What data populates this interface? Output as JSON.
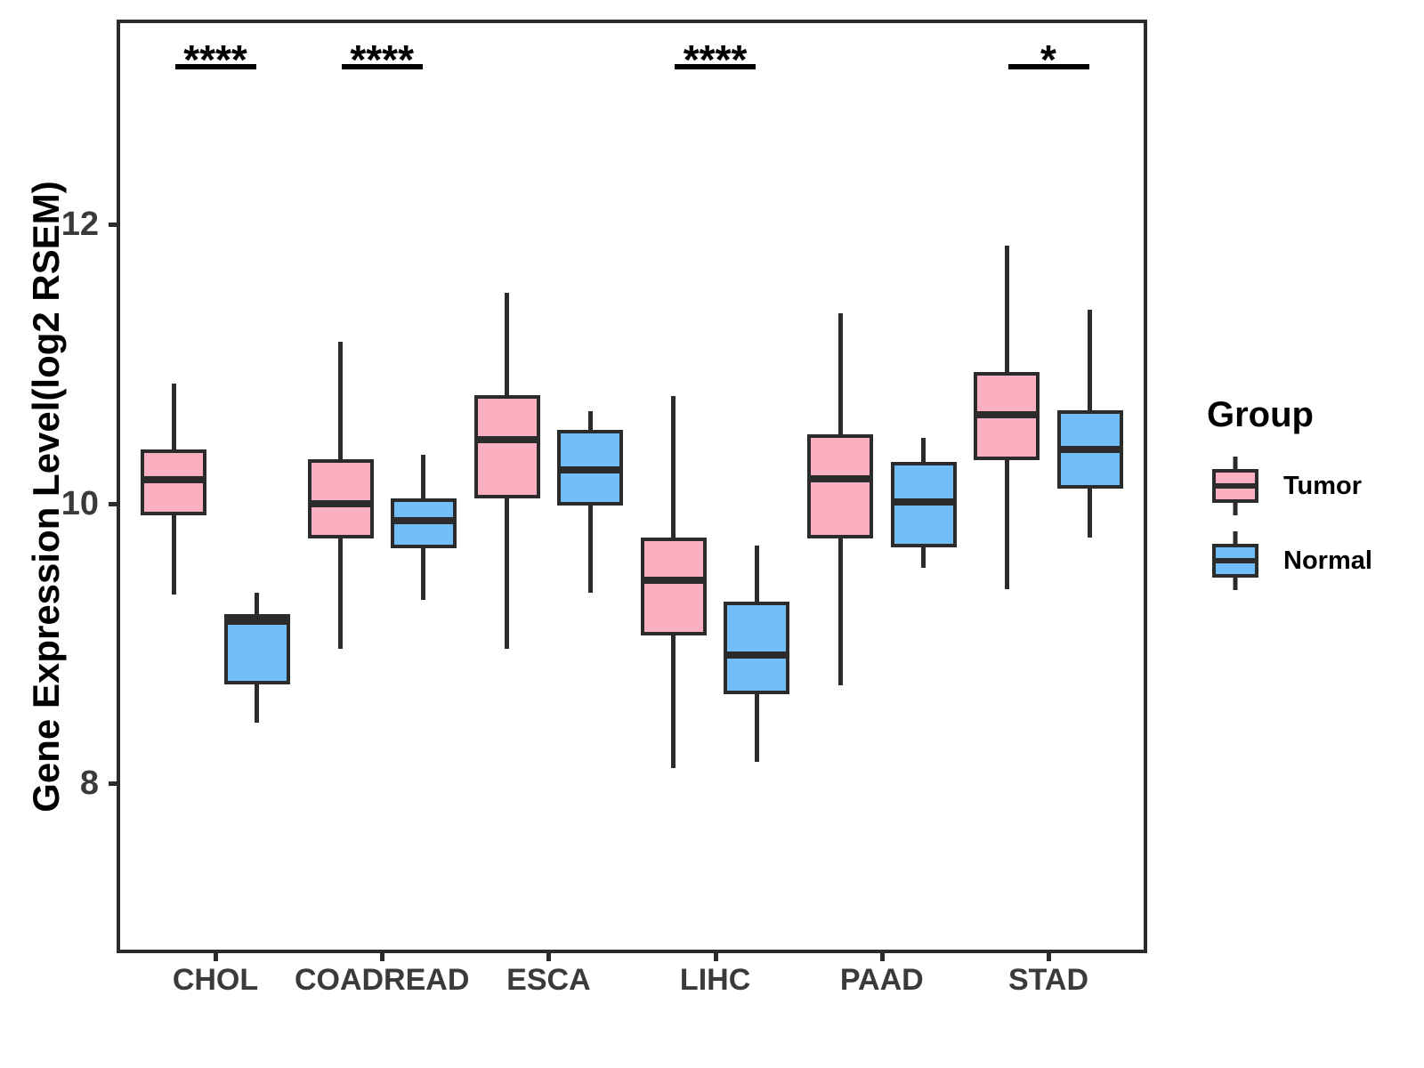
{
  "chart_data": {
    "type": "boxplot",
    "title": "",
    "xlabel": "",
    "ylabel": "Gene Expression Level(log2 RSEM)",
    "categories": [
      "CHOL",
      "COADREAD",
      "ESCA",
      "LIHC",
      "PAAD",
      "STAD"
    ],
    "yticks": [
      8,
      10,
      12
    ],
    "ylim": [
      6.8,
      13.45
    ],
    "grid": false,
    "legend": {
      "title": "Group",
      "position": "right"
    },
    "series": [
      {
        "name": "Tumor",
        "color": "#FBB0C2",
        "boxes": [
          {
            "category": "CHOL",
            "whisker_low": 9.35,
            "q1": 9.92,
            "median": 10.17,
            "q3": 10.39,
            "whisker_high": 10.86
          },
          {
            "category": "COADREAD",
            "whisker_low": 8.96,
            "q1": 9.75,
            "median": 10.0,
            "q3": 10.32,
            "whisker_high": 11.16
          },
          {
            "category": "ESCA",
            "whisker_low": 8.96,
            "q1": 10.04,
            "median": 10.46,
            "q3": 10.78,
            "whisker_high": 11.51
          },
          {
            "category": "LIHC",
            "whisker_low": 8.11,
            "q1": 9.06,
            "median": 9.45,
            "q3": 9.76,
            "whisker_high": 10.77
          },
          {
            "category": "PAAD",
            "whisker_low": 8.7,
            "q1": 9.75,
            "median": 10.18,
            "q3": 10.5,
            "whisker_high": 11.36
          },
          {
            "category": "STAD",
            "whisker_low": 9.39,
            "q1": 10.31,
            "median": 10.64,
            "q3": 10.94,
            "whisker_high": 11.85
          }
        ]
      },
      {
        "name": "Normal",
        "color": "#72BFF7",
        "boxes": [
          {
            "category": "CHOL",
            "whisker_low": 8.43,
            "q1": 8.71,
            "median": 9.16,
            "q3": 9.21,
            "whisker_high": 9.36
          },
          {
            "category": "COADREAD",
            "whisker_low": 9.31,
            "q1": 9.68,
            "median": 9.88,
            "q3": 10.04,
            "whisker_high": 10.35
          },
          {
            "category": "ESCA",
            "whisker_low": 9.36,
            "q1": 9.99,
            "median": 10.24,
            "q3": 10.53,
            "whisker_high": 10.66
          },
          {
            "category": "LIHC",
            "whisker_low": 8.15,
            "q1": 8.64,
            "median": 8.92,
            "q3": 9.3,
            "whisker_high": 9.7
          },
          {
            "category": "PAAD",
            "whisker_low": 9.54,
            "q1": 9.69,
            "median": 10.01,
            "q3": 10.3,
            "whisker_high": 10.47
          },
          {
            "category": "STAD",
            "whisker_low": 9.76,
            "q1": 10.11,
            "median": 10.39,
            "q3": 10.67,
            "whisker_high": 11.39
          }
        ]
      }
    ],
    "significance": [
      {
        "category": "CHOL",
        "label": "****"
      },
      {
        "category": "COADREAD",
        "label": "****"
      },
      {
        "category": "LIHC",
        "label": "****"
      },
      {
        "category": "STAD",
        "label": "*"
      }
    ],
    "colors": {
      "box_border": "#2b2b2b",
      "axis": "#2b2b2b",
      "tick_text": "#3a3a3a",
      "annotation": "#000000"
    }
  }
}
